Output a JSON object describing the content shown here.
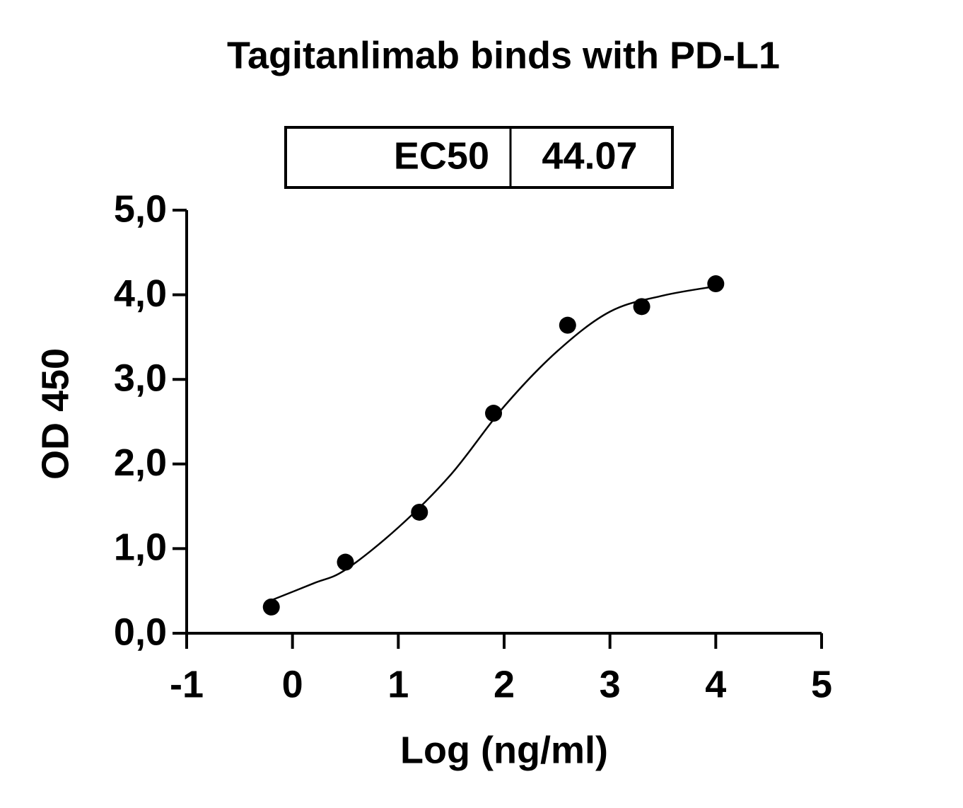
{
  "chart_data": {
    "type": "scatter",
    "title": "Tagitanlimab binds with PD-L1",
    "x_label": "Log (ng/ml)",
    "y_label": "OD 450",
    "ec50_table": {
      "label": "EC50",
      "value": "44.07"
    },
    "series": [
      {
        "name": "data",
        "color": "#000000",
        "x": [
          -0.2,
          0.5,
          1.2,
          1.9,
          2.6,
          3.3,
          4.0
        ],
        "values": [
          0.31,
          0.84,
          1.43,
          2.6,
          3.64,
          3.86,
          4.13
        ]
      },
      {
        "name": "fit",
        "color": "#000000",
        "x": [
          -0.2,
          0.2,
          0.5,
          1.0,
          1.5,
          2.0,
          2.5,
          3.0,
          3.5,
          4.0
        ],
        "values": [
          0.39,
          0.59,
          0.75,
          1.25,
          1.88,
          2.68,
          3.33,
          3.8,
          3.99,
          4.1
        ]
      }
    ],
    "xlim": [
      -1,
      5
    ],
    "xticks": [
      -1,
      0,
      1,
      2,
      3,
      4,
      5
    ],
    "ylim": [
      0,
      5
    ],
    "yticks": [
      {
        "value": 0,
        "label": "0,0"
      },
      {
        "value": 1,
        "label": "1,0"
      },
      {
        "value": 2,
        "label": "2,0"
      },
      {
        "value": 3,
        "label": "3,0"
      },
      {
        "value": 4,
        "label": "4,0"
      },
      {
        "value": 5,
        "label": "5,0"
      }
    ]
  }
}
